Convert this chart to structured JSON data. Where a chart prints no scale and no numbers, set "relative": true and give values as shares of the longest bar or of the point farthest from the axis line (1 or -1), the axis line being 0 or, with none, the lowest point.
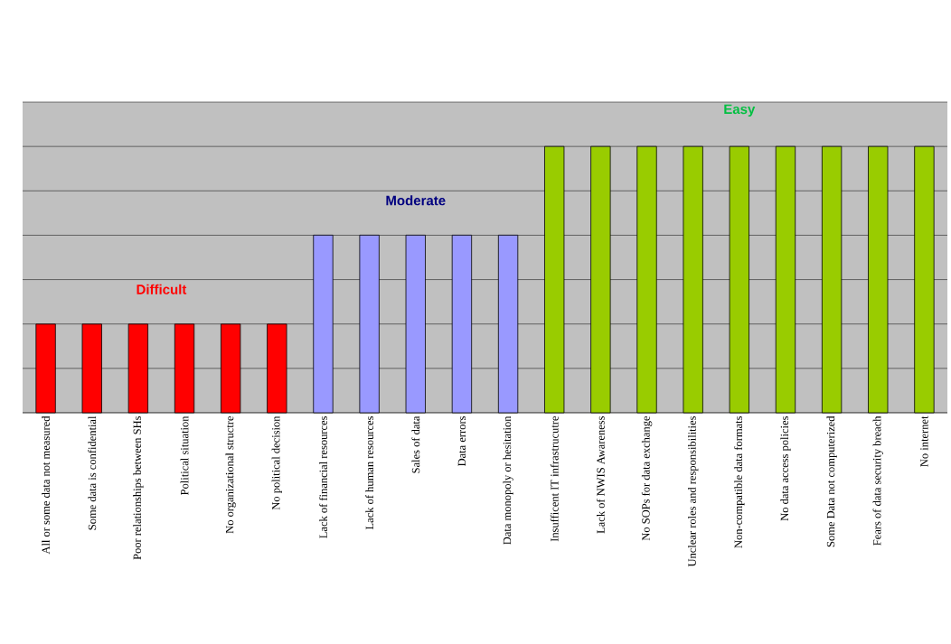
{
  "chart_data": {
    "type": "bar",
    "relative": true,
    "grid": "y",
    "categories": [
      "All or some data not measured",
      "Some data is confidential",
      "Poor relationships between SHs",
      "Political situation",
      "No organizational structre",
      "No political decision",
      "Lack of financial resources",
      "Lack of human resources",
      "Sales of data",
      "Data errors",
      "Data monopoly or hesitation",
      "Insufficent IT infrastrucutre",
      "Lack of NWIS Awareness",
      "No SOPs for data exchange",
      "Unclear roles and responsibilities",
      "Non-compatible data formats",
      "No data access policies",
      "Some Data not computerized",
      "Fears of data security breach",
      "No internet"
    ],
    "values": [
      0.333,
      0.333,
      0.333,
      0.333,
      0.333,
      0.333,
      0.667,
      0.667,
      0.667,
      0.667,
      0.667,
      1,
      1,
      1,
      1,
      1,
      1,
      1,
      1,
      1
    ],
    "colors": [
      "#ff0000",
      "#ff0000",
      "#ff0000",
      "#ff0000",
      "#ff0000",
      "#ff0000",
      "#9999ff",
      "#9999ff",
      "#9999ff",
      "#9999ff",
      "#9999ff",
      "#99cc00",
      "#99cc00",
      "#99cc00",
      "#99cc00",
      "#99cc00",
      "#99cc00",
      "#99cc00",
      "#99cc00",
      "#99cc00"
    ],
    "annotations": [
      "Difficult",
      "Moderate",
      "Easy"
    ]
  }
}
